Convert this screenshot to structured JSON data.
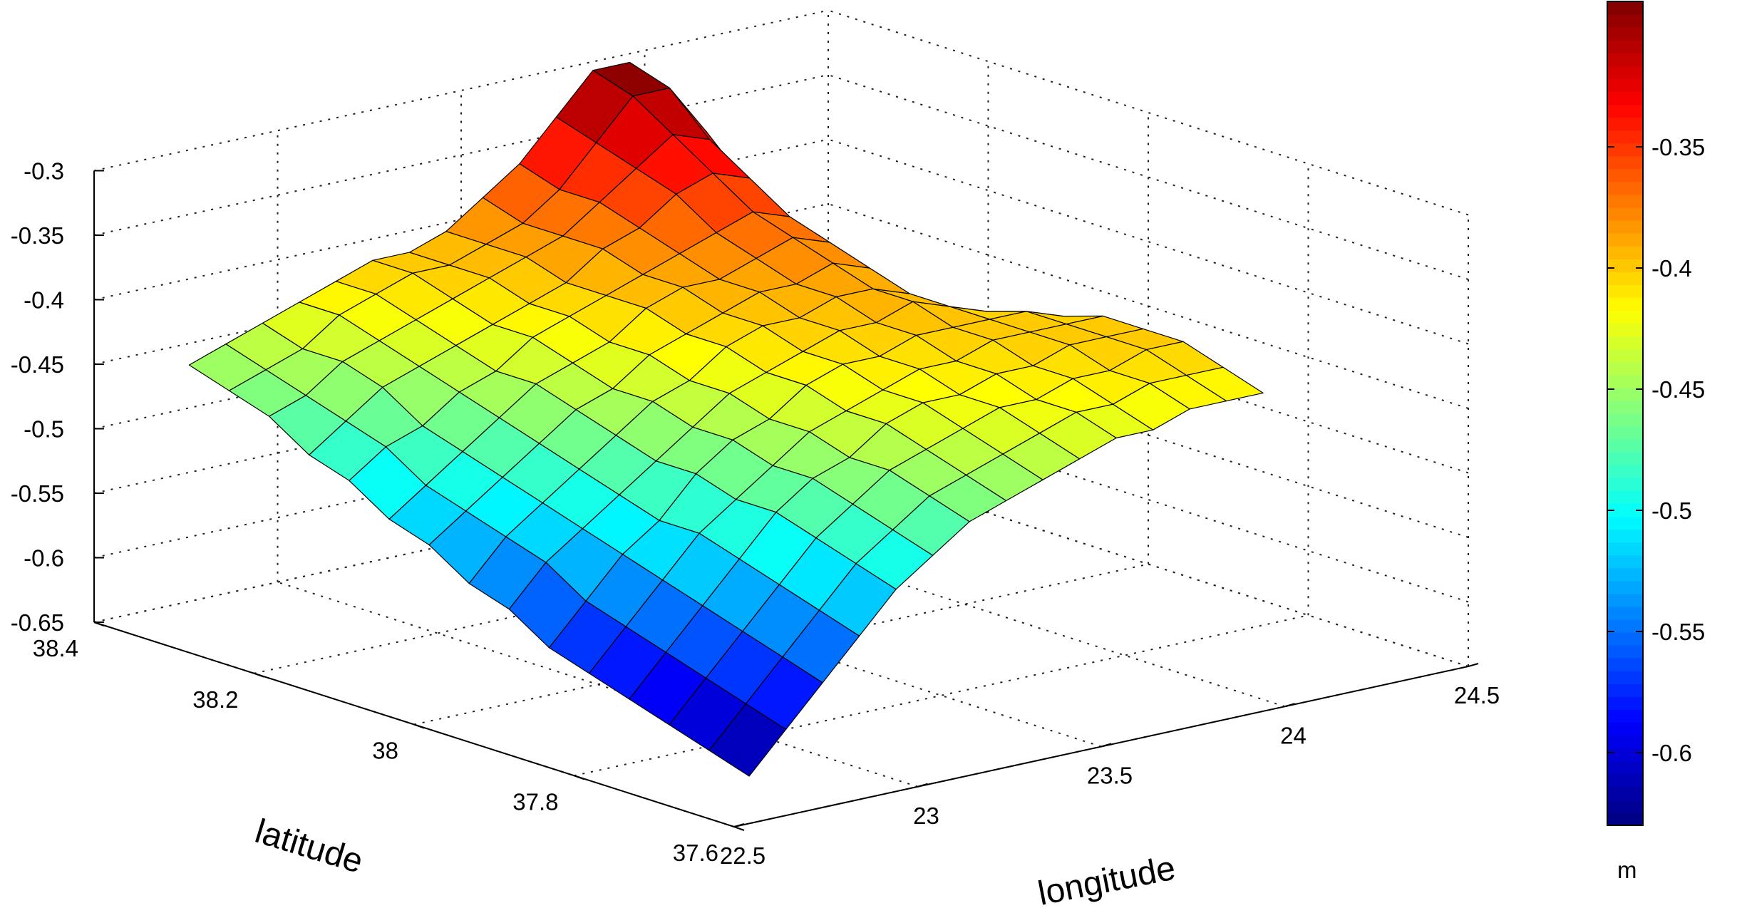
{
  "chart_data": {
    "type": "surface",
    "title": "",
    "xlabel": "longitude",
    "ylabel": "latitude",
    "zlabel": "",
    "colorbar_label": "m",
    "xlim": [
      22.5,
      24.5
    ],
    "ylim": [
      37.6,
      38.4
    ],
    "zlim": [
      -0.65,
      -0.3
    ],
    "clim": [
      -0.63,
      -0.29
    ],
    "grid": true,
    "colormap": "jet",
    "x_ticks": [
      "22.5",
      "23",
      "23.5",
      "24",
      "24.5"
    ],
    "y_ticks": [
      "37.6",
      "37.8",
      "38",
      "38.2",
      "38.4"
    ],
    "z_ticks": [
      "-0.65",
      "-0.6",
      "-0.55",
      "-0.5",
      "-0.45",
      "-0.4",
      "-0.35",
      "-0.3"
    ],
    "colorbar_ticks": [
      "-0.6",
      "-0.55",
      "-0.5",
      "-0.45",
      "-0.4",
      "-0.35"
    ],
    "x": [
      22.65,
      22.75,
      22.85,
      22.95,
      23.05,
      23.15,
      23.25,
      23.35,
      23.45,
      23.55,
      23.65,
      23.75,
      23.85,
      23.95,
      24.05
    ],
    "y": [
      37.65,
      37.7,
      37.75,
      37.8,
      37.85,
      37.9,
      37.95,
      38.0,
      38.05,
      38.1,
      38.15,
      38.2,
      38.25,
      38.3,
      38.35
    ],
    "z": [
      [
        -0.63,
        -0.6,
        -0.57,
        -0.54,
        -0.51,
        -0.49,
        -0.47,
        -0.46,
        -0.45,
        -0.44,
        -0.43,
        -0.43,
        -0.42,
        -0.42,
        -0.42
      ],
      [
        -0.62,
        -0.59,
        -0.56,
        -0.53,
        -0.5,
        -0.48,
        -0.46,
        -0.45,
        -0.44,
        -0.43,
        -0.42,
        -0.42,
        -0.41,
        -0.41,
        -0.41
      ],
      [
        -0.61,
        -0.58,
        -0.55,
        -0.52,
        -0.49,
        -0.47,
        -0.45,
        -0.44,
        -0.43,
        -0.42,
        -0.42,
        -0.41,
        -0.41,
        -0.4,
        -0.4
      ],
      [
        -0.6,
        -0.57,
        -0.54,
        -0.51,
        -0.48,
        -0.46,
        -0.45,
        -0.43,
        -0.42,
        -0.42,
        -0.41,
        -0.41,
        -0.4,
        -0.4,
        -0.4
      ],
      [
        -0.59,
        -0.56,
        -0.53,
        -0.5,
        -0.48,
        -0.46,
        -0.44,
        -0.43,
        -0.42,
        -0.41,
        -0.41,
        -0.4,
        -0.4,
        -0.4,
        -0.4
      ],
      [
        -0.58,
        -0.55,
        -0.52,
        -0.5,
        -0.47,
        -0.45,
        -0.44,
        -0.42,
        -0.41,
        -0.41,
        -0.4,
        -0.4,
        -0.4,
        -0.4,
        -0.41
      ],
      [
        -0.56,
        -0.53,
        -0.51,
        -0.49,
        -0.47,
        -0.45,
        -0.43,
        -0.42,
        -0.41,
        -0.4,
        -0.4,
        -0.39,
        -0.4,
        -0.41,
        -0.42
      ],
      [
        -0.55,
        -0.52,
        -0.5,
        -0.48,
        -0.46,
        -0.44,
        -0.43,
        -0.41,
        -0.4,
        -0.4,
        -0.39,
        -0.39,
        -0.4,
        -0.42,
        -0.43
      ],
      [
        -0.53,
        -0.51,
        -0.49,
        -0.47,
        -0.45,
        -0.44,
        -0.42,
        -0.41,
        -0.4,
        -0.39,
        -0.39,
        -0.38,
        -0.39,
        -0.42,
        -0.44
      ],
      [
        -0.52,
        -0.5,
        -0.48,
        -0.46,
        -0.44,
        -0.43,
        -0.42,
        -0.4,
        -0.39,
        -0.39,
        -0.38,
        -0.37,
        -0.38,
        -0.41,
        -0.45
      ],
      [
        -0.5,
        -0.48,
        -0.47,
        -0.45,
        -0.44,
        -0.42,
        -0.41,
        -0.4,
        -0.39,
        -0.38,
        -0.37,
        -0.36,
        -0.37,
        -0.4,
        -0.45
      ],
      [
        -0.49,
        -0.47,
        -0.45,
        -0.44,
        -0.43,
        -0.42,
        -0.41,
        -0.4,
        -0.38,
        -0.37,
        -0.35,
        -0.34,
        -0.35,
        -0.39,
        -0.44
      ],
      [
        -0.47,
        -0.46,
        -0.44,
        -0.43,
        -0.42,
        -0.41,
        -0.4,
        -0.39,
        -0.38,
        -0.36,
        -0.34,
        -0.32,
        -0.33,
        -0.37,
        -0.42
      ],
      [
        -0.46,
        -0.45,
        -0.44,
        -0.42,
        -0.41,
        -0.4,
        -0.4,
        -0.39,
        -0.38,
        -0.36,
        -0.33,
        -0.3,
        -0.3,
        -0.34,
        -0.39
      ],
      [
        -0.45,
        -0.44,
        -0.43,
        -0.42,
        -0.41,
        -0.4,
        -0.4,
        -0.39,
        -0.37,
        -0.35,
        -0.32,
        -0.29,
        -0.29,
        -0.33,
        -0.39
      ]
    ]
  }
}
